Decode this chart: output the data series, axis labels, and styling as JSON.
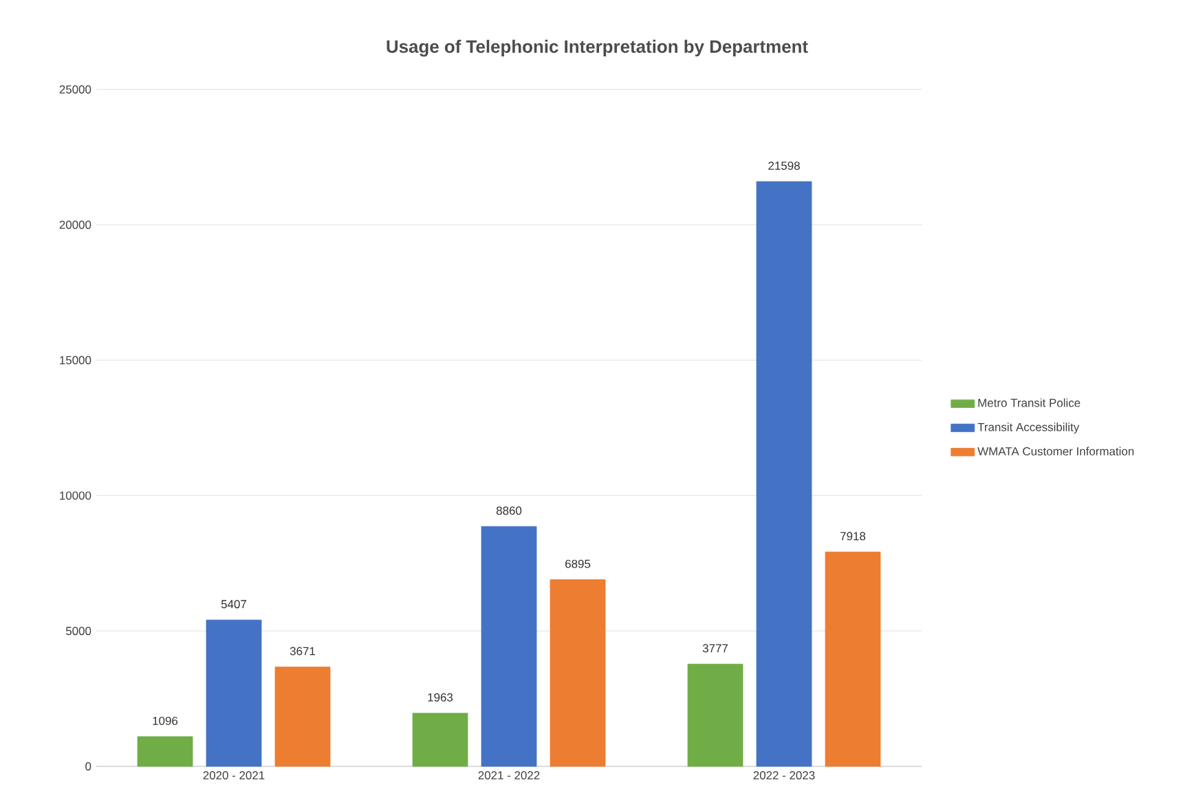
{
  "chart_data": {
    "type": "bar",
    "title": "Usage of Telephonic Interpretation by Department",
    "categories": [
      "2020 - 2021",
      "2021 - 2022",
      "2022 - 2023"
    ],
    "series": [
      {
        "name": "Metro Transit Police",
        "color": "#70ad47",
        "values": [
          1096,
          1963,
          3777
        ]
      },
      {
        "name": "Transit Accessibility",
        "color": "#4472c4",
        "values": [
          5407,
          8860,
          21598
        ]
      },
      {
        "name": "WMATA Customer Information",
        "color": "#ed7d31",
        "values": [
          3671,
          6895,
          7918
        ]
      }
    ],
    "ylim": [
      0,
      25000
    ],
    "yticks": [
      0,
      5000,
      10000,
      15000,
      20000,
      25000
    ],
    "grid": "y",
    "legend": "right",
    "data_labels": true
  }
}
